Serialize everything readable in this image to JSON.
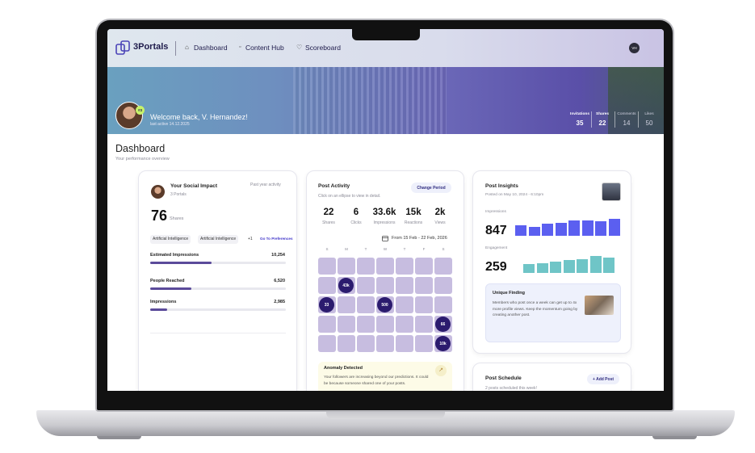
{
  "nav": {
    "brand": "3Portals",
    "links": [
      "Dashboard",
      "Content Hub",
      "Scoreboard"
    ],
    "avatar": "VH"
  },
  "banner": {
    "rank": "#3",
    "welcome": "Welcome back, V. Hernandez!",
    "last_active": "last active 14.12.2025",
    "stats": [
      {
        "label": "Invitations",
        "value": "35"
      },
      {
        "label": "Shares",
        "value": "22"
      },
      {
        "label": "Comments",
        "value": "14"
      },
      {
        "label": "Likes",
        "value": "50"
      }
    ]
  },
  "page": {
    "title": "Dashboard",
    "subtitle": "Your performance overview"
  },
  "social_impact": {
    "title": "Your Social Impact",
    "subtitle": "3 Portals",
    "period": "Past year activity",
    "shares_value": "76",
    "shares_label": "Shares",
    "tags": [
      "Artificial Intelligence",
      "Artificial Intelligence",
      "+1"
    ],
    "preferences_link": "Go To Preferences",
    "metrics": [
      {
        "label": "Estimated Impressions",
        "value": "10,254"
      },
      {
        "label": "People Reached",
        "value": "6,520"
      },
      {
        "label": "Impressions",
        "value": "2,985"
      }
    ]
  },
  "post_activity": {
    "title": "Post Activity",
    "button": "Change Period",
    "hint": "Click on an ellipse to view in detail.",
    "stats": [
      {
        "value": "22",
        "label": "Shares"
      },
      {
        "value": "6",
        "label": "Clicks"
      },
      {
        "value": "33.6k",
        "label": "Impressions"
      },
      {
        "value": "15k",
        "label": "Reactions"
      },
      {
        "value": "2k",
        "label": "Views"
      }
    ],
    "date_range": "From 15 Feb - 22 Feb, 2026",
    "weekdays": [
      "S",
      "M",
      "T",
      "W",
      "T",
      "F",
      "S"
    ],
    "calendar": [
      [
        null,
        null,
        null,
        null,
        null,
        null,
        null
      ],
      [
        null,
        "43k",
        null,
        null,
        null,
        null,
        null
      ],
      [
        "33",
        null,
        null,
        "500",
        null,
        null,
        null
      ],
      [
        null,
        null,
        null,
        null,
        null,
        null,
        "66"
      ],
      [
        null,
        null,
        null,
        null,
        null,
        null,
        "10k"
      ]
    ],
    "anomaly": {
      "title": "Anomaly Detected",
      "text": "Your followers are increasing beyond our predictions. It could be because someone shared one of your posts."
    }
  },
  "post_insights": {
    "title": "Post Insights",
    "posted": "Posted on May 10, 2024 - 6:10pm",
    "impressions_label": "Impressions",
    "impressions_value": "847",
    "engagement_label": "Engagement",
    "engagement_value": "259",
    "finding": {
      "title": "Unique Finding",
      "text": "Members who post once a week can get up to 4x more profile views. Keep the momentum going by creating another post."
    }
  },
  "post_schedule": {
    "title": "Post Schedule",
    "button": "+ Add Post",
    "subtitle": "2 posts scheduled this week!"
  }
}
